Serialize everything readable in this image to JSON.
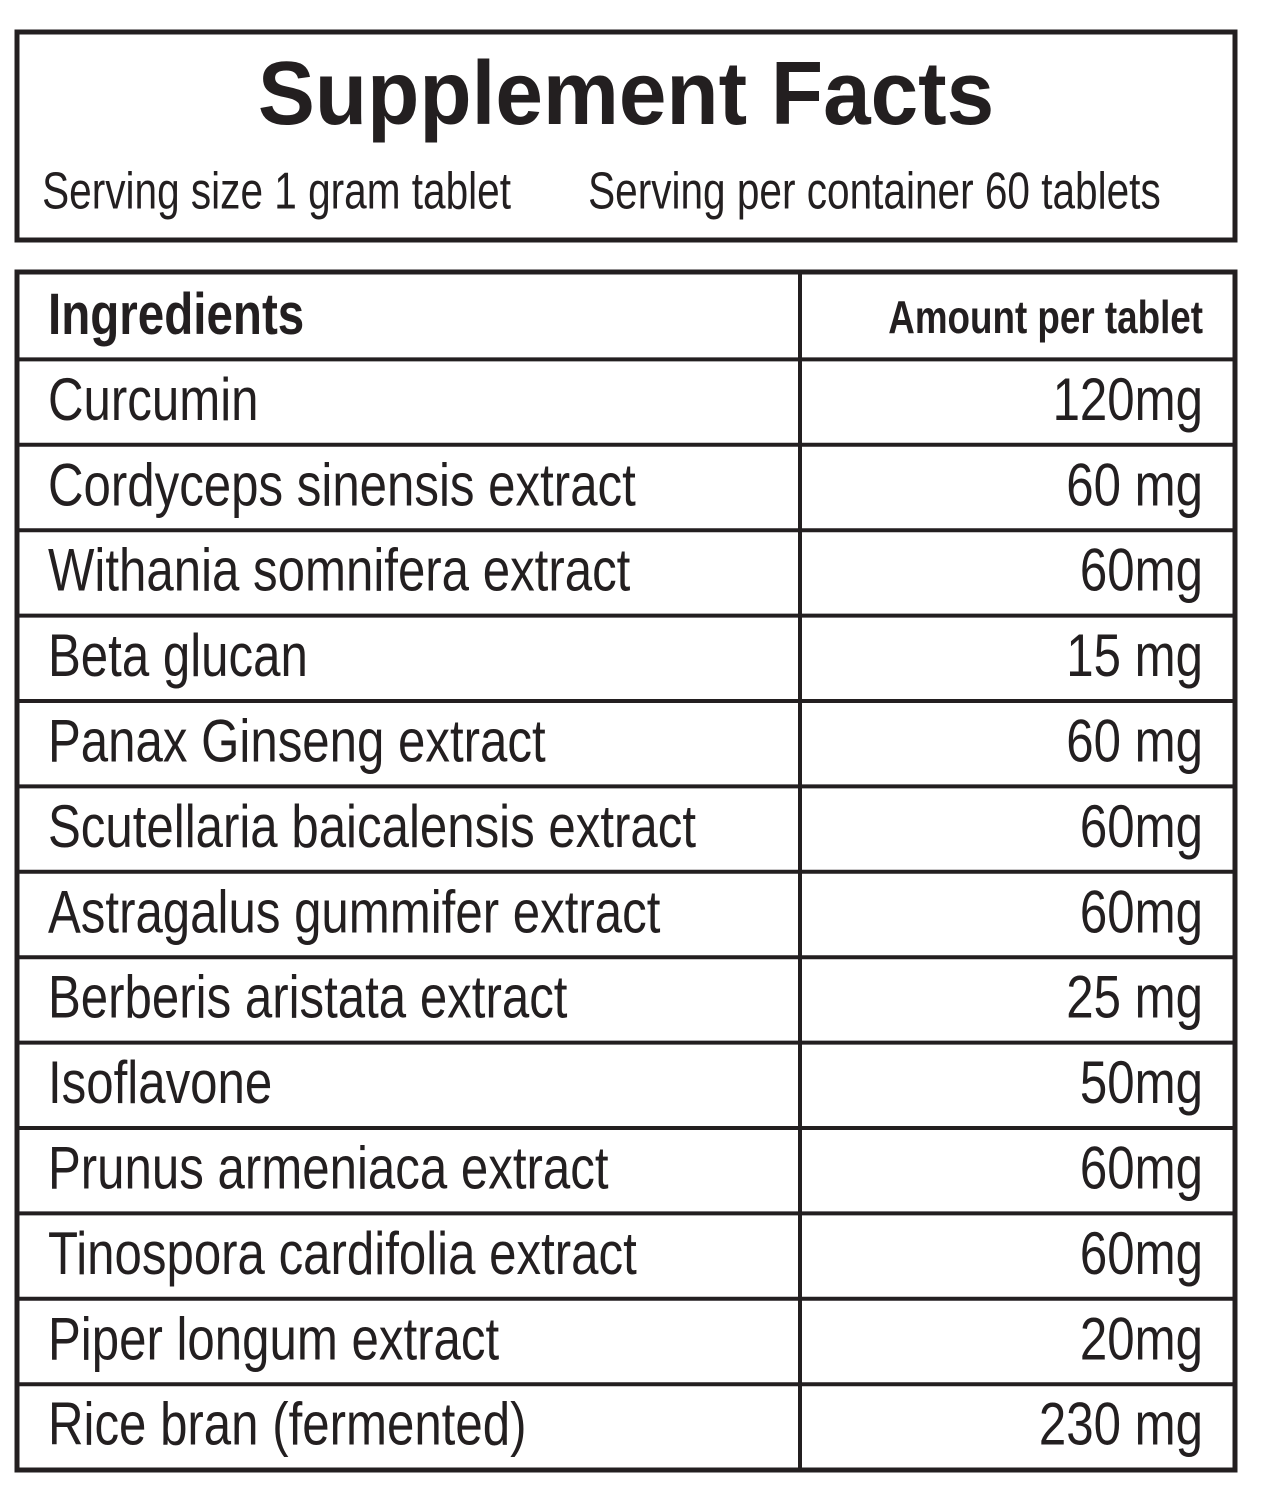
{
  "header": {
    "title": "Supplement Facts",
    "serving_size": "Serving size 1 gram tablet",
    "servings_per_container": "Serving per container 60 tablets"
  },
  "table": {
    "columns": [
      "Ingredients",
      "Amount per tablet"
    ],
    "rows": [
      [
        "Curcumin",
        "120mg"
      ],
      [
        "Cordyceps sinensis extract",
        "60 mg"
      ],
      [
        "Withania somnifera extract",
        "60mg"
      ],
      [
        "Beta glucan",
        "15 mg"
      ],
      [
        "Panax Ginseng extract",
        "60 mg"
      ],
      [
        "Scutellaria baicalensis extract",
        "60mg"
      ],
      [
        "Astragalus gummifer extract",
        "60mg"
      ],
      [
        "Berberis aristata extract",
        "25 mg"
      ],
      [
        "Isoflavone",
        "50mg"
      ],
      [
        "Prunus armeniaca extract",
        "60mg"
      ],
      [
        "Tinospora cardifolia extract",
        "60mg"
      ],
      [
        "Piper longum extract",
        "20mg"
      ],
      [
        "Rice bran (fermented)",
        "230 mg"
      ]
    ]
  }
}
